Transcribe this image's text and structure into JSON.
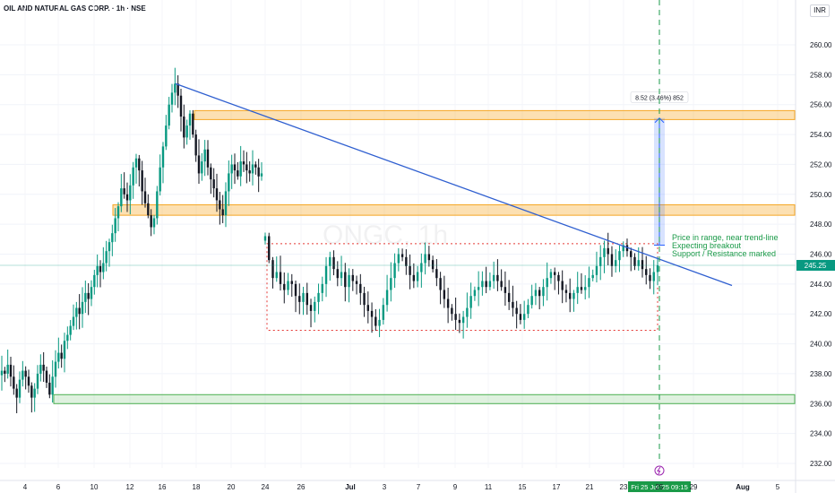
{
  "header": {
    "symbol_title": "OIL AND NATURAL GAS CORP. · 1h · NSE",
    "currency": "INR",
    "watermark": "ONGC, 1h"
  },
  "chart_data": {
    "type": "candlestick",
    "title": "OIL AND NATURAL GAS CORP. · 1h · NSE",
    "ylim": [
      231,
      261
    ],
    "y_ticks": [
      "232.00",
      "234.00",
      "236.00",
      "238.00",
      "240.00",
      "242.00",
      "244.00",
      "246.00",
      "248.00",
      "250.00",
      "252.00",
      "254.00",
      "256.00",
      "258.00",
      "260.00"
    ],
    "x_ticks": [
      "4",
      "6",
      "10",
      "12",
      "16",
      "18",
      "20",
      "24",
      "26",
      "Jul",
      "3",
      "7",
      "9",
      "11",
      "15",
      "17",
      "21",
      "23",
      "25",
      "29",
      "Aug",
      "5"
    ],
    "last_price": "245.25",
    "crosshair_date": "Fri 25 Jul '25   09:15",
    "colors": {
      "up": "#089981",
      "down": "#131722",
      "trend": "#2f5fd0",
      "zone": "#f5a623",
      "support": "#4caf50",
      "range": "#e53935",
      "measure": "#2962ff",
      "note": "#1a9a48"
    },
    "closes": [
      238.2,
      238.0,
      238.6,
      237.8,
      237.0,
      236.4,
      237.6,
      238.2,
      237.8,
      237.2,
      236.4,
      237.0,
      238.0,
      238.6,
      238.2,
      237.4,
      236.6,
      237.8,
      238.8,
      239.4,
      239.0,
      240.2,
      240.6,
      241.2,
      241.8,
      242.4,
      242.0,
      242.8,
      243.4,
      243.0,
      243.8,
      244.6,
      245.2,
      244.8,
      245.4,
      246.2,
      246.8,
      247.4,
      248.4,
      249.2,
      250.4,
      250.0,
      249.6,
      250.6,
      251.8,
      252.4,
      251.6,
      250.2,
      249.4,
      248.6,
      247.8,
      248.4,
      250.2,
      251.8,
      253.2,
      254.6,
      256.0,
      256.8,
      257.4,
      256.6,
      255.2,
      253.8,
      254.6,
      255.4,
      254.0,
      252.6,
      251.4,
      252.2,
      253.0,
      251.8,
      251.0,
      250.4,
      249.6,
      249.0,
      248.6,
      250.2,
      251.4,
      252.0,
      251.6,
      251.2,
      252.2,
      252.0,
      251.6,
      251.4,
      252.0,
      251.8,
      251.2,
      251.4
    ],
    "closes_b": [
      247.2,
      245.6,
      244.4,
      244.8,
      244.0,
      243.6,
      244.2,
      244.0,
      243.2,
      242.8,
      243.4,
      242.6,
      242.2,
      242.8,
      243.4,
      244.0,
      245.2,
      245.8,
      245.0,
      244.4,
      244.8,
      243.8,
      244.6,
      244.2,
      244.0,
      243.4,
      242.6,
      242.2,
      241.8,
      241.2,
      241.6,
      242.6,
      243.6,
      244.4,
      245.4,
      246.0,
      245.8,
      245.2,
      244.6,
      244.2,
      244.8,
      245.4,
      246.0,
      245.6,
      245.0,
      244.4,
      243.6,
      243.0,
      242.4,
      242.0,
      241.6,
      241.4,
      241.8,
      242.4,
      243.2,
      243.6,
      243.8,
      244.2,
      243.8,
      244.2,
      244.6,
      244.2,
      243.8,
      243.4,
      242.8,
      242.4,
      242.0,
      241.6,
      242.0,
      242.6,
      243.2,
      243.6,
      243.2,
      243.8,
      244.4,
      244.8,
      244.6,
      244.2,
      243.6,
      243.4,
      243.0,
      243.4,
      243.8,
      243.6,
      243.8,
      244.4,
      244.6,
      245.2,
      245.8,
      246.4,
      246.0,
      245.2,
      245.6,
      246.2,
      246.6,
      246.2,
      245.8,
      245.2,
      245.6,
      245.0,
      244.6,
      244.2,
      244.8,
      245.25
    ]
  },
  "annotations": {
    "measure_label": "8.52 (3.46%) 852",
    "note_lines": [
      "Price in range, near trend-line",
      "Expecting breakout",
      "Support / Resistance marked"
    ]
  }
}
